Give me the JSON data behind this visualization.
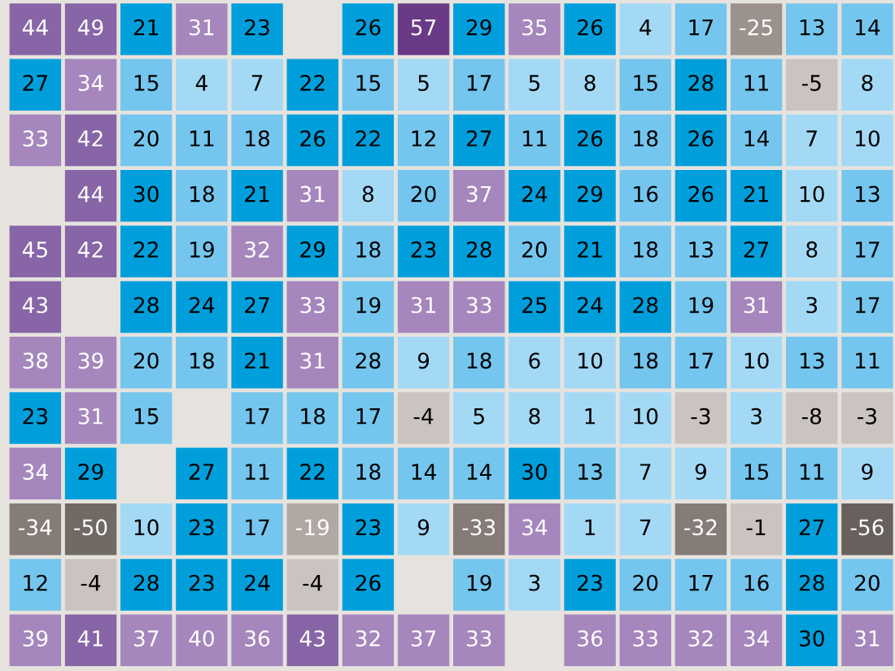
{
  "chart_data": {
    "type": "heatmap",
    "categories": [
      null,
      null,
      null,
      null,
      null,
      null,
      null,
      null,
      null,
      null,
      null,
      null,
      null,
      null,
      null,
      null
    ],
    "y_categories": [
      null,
      null,
      null,
      null,
      null,
      null,
      null,
      null,
      null,
      null,
      null,
      null
    ],
    "data_labels": true,
    "cells": [
      [
        44,
        49,
        21,
        31,
        23,
        null,
        26,
        57,
        29,
        35,
        26,
        4,
        17,
        -25,
        13,
        14
      ],
      [
        27,
        34,
        15,
        4,
        7,
        22,
        15,
        5,
        17,
        5,
        8,
        15,
        28,
        11,
        -5,
        8
      ],
      [
        33,
        42,
        20,
        11,
        18,
        26,
        22,
        12,
        27,
        11,
        26,
        18,
        26,
        14,
        7,
        10
      ],
      [
        null,
        44,
        30,
        18,
        21,
        31,
        8,
        20,
        37,
        24,
        29,
        16,
        26,
        21,
        10,
        13
      ],
      [
        45,
        42,
        22,
        19,
        32,
        29,
        18,
        23,
        28,
        20,
        21,
        18,
        13,
        27,
        8,
        17
      ],
      [
        43,
        null,
        28,
        24,
        27,
        33,
        19,
        31,
        33,
        25,
        24,
        28,
        19,
        31,
        3,
        17
      ],
      [
        38,
        39,
        20,
        18,
        21,
        31,
        28,
        9,
        18,
        6,
        10,
        18,
        17,
        10,
        13,
        11
      ],
      [
        23,
        31,
        15,
        null,
        17,
        18,
        17,
        -4,
        5,
        8,
        1,
        10,
        -3,
        3,
        -8,
        -3
      ],
      [
        34,
        29,
        null,
        27,
        11,
        22,
        18,
        14,
        14,
        30,
        13,
        7,
        9,
        15,
        11,
        9
      ],
      [
        -34,
        -50,
        10,
        23,
        17,
        -19,
        23,
        9,
        -33,
        34,
        1,
        7,
        -32,
        -1,
        27,
        -56
      ],
      [
        12,
        -4,
        28,
        23,
        24,
        -4,
        26,
        null,
        19,
        3,
        23,
        20,
        17,
        16,
        28,
        20
      ],
      [
        39,
        41,
        37,
        40,
        36,
        43,
        32,
        37,
        33,
        null,
        36,
        33,
        32,
        34,
        30,
        31
      ]
    ],
    "colors": [
      [
        "#8765a6",
        "#8765a6",
        "#009fdb",
        "#a586bd",
        "#009fdb",
        null,
        "#009fdb",
        "#6a3a87",
        "#009fdb",
        "#a586bd",
        "#009fdb",
        "#a3d9f5",
        "#74c6ee",
        "#9b918d",
        "#74c6ee",
        "#74c6ee"
      ],
      [
        "#009fdb",
        "#a586bd",
        "#74c6ee",
        "#a3d9f5",
        "#a3d9f5",
        "#009fdb",
        "#74c6ee",
        "#a3d9f5",
        "#74c6ee",
        "#a3d9f5",
        "#a3d9f5",
        "#74c6ee",
        "#009fdb",
        "#74c6ee",
        "#cbc3bf",
        "#a3d9f5"
      ],
      [
        "#a586bd",
        "#8765a6",
        "#74c6ee",
        "#74c6ee",
        "#74c6ee",
        "#009fdb",
        "#009fdb",
        "#74c6ee",
        "#009fdb",
        "#74c6ee",
        "#009fdb",
        "#74c6ee",
        "#009fdb",
        "#74c6ee",
        "#a3d9f5",
        "#a3d9f5"
      ],
      [
        null,
        "#8765a6",
        "#009fdb",
        "#74c6ee",
        "#009fdb",
        "#a586bd",
        "#a3d9f5",
        "#74c6ee",
        "#a586bd",
        "#009fdb",
        "#009fdb",
        "#74c6ee",
        "#009fdb",
        "#009fdb",
        "#a3d9f5",
        "#74c6ee"
      ],
      [
        "#8765a6",
        "#8765a6",
        "#009fdb",
        "#74c6ee",
        "#a586bd",
        "#009fdb",
        "#74c6ee",
        "#009fdb",
        "#009fdb",
        "#74c6ee",
        "#009fdb",
        "#74c6ee",
        "#74c6ee",
        "#009fdb",
        "#a3d9f5",
        "#74c6ee"
      ],
      [
        "#8765a6",
        null,
        "#009fdb",
        "#009fdb",
        "#009fdb",
        "#a586bd",
        "#74c6ee",
        "#a586bd",
        "#a586bd",
        "#009fdb",
        "#009fdb",
        "#009fdb",
        "#74c6ee",
        "#a586bd",
        "#a3d9f5",
        "#74c6ee"
      ],
      [
        "#a586bd",
        "#a586bd",
        "#74c6ee",
        "#74c6ee",
        "#009fdb",
        "#a586bd",
        "#74c6ee",
        "#a3d9f5",
        "#74c6ee",
        "#a3d9f5",
        "#a3d9f5",
        "#74c6ee",
        "#74c6ee",
        "#a3d9f5",
        "#74c6ee",
        "#74c6ee"
      ],
      [
        "#009fdb",
        "#a586bd",
        "#74c6ee",
        null,
        "#74c6ee",
        "#74c6ee",
        "#74c6ee",
        "#cbc3bf",
        "#a3d9f5",
        "#a3d9f5",
        "#a3d9f5",
        "#a3d9f5",
        "#cbc3bf",
        "#a3d9f5",
        "#cbc3bf",
        "#cbc3bf"
      ],
      [
        "#a586bd",
        "#009fdb",
        null,
        "#009fdb",
        "#74c6ee",
        "#009fdb",
        "#74c6ee",
        "#74c6ee",
        "#74c6ee",
        "#009fdb",
        "#74c6ee",
        "#a3d9f5",
        "#a3d9f5",
        "#74c6ee",
        "#74c6ee",
        "#a3d9f5"
      ],
      [
        "#857b77",
        "#716964",
        "#a3d9f5",
        "#009fdb",
        "#74c6ee",
        "#b1a8a4",
        "#009fdb",
        "#a3d9f5",
        "#857b77",
        "#a586bd",
        "#a3d9f5",
        "#a3d9f5",
        "#857b77",
        "#cbc3bf",
        "#009fdb",
        "#67605c"
      ],
      [
        "#74c6ee",
        "#cbc3bf",
        "#009fdb",
        "#009fdb",
        "#009fdb",
        "#cbc3bf",
        "#009fdb",
        null,
        "#74c6ee",
        "#a3d9f5",
        "#009fdb",
        "#74c6ee",
        "#74c6ee",
        "#74c6ee",
        "#009fdb",
        "#74c6ee"
      ],
      [
        "#a586bd",
        "#8765a6",
        "#a586bd",
        "#a586bd",
        "#a586bd",
        "#8765a6",
        "#a586bd",
        "#a586bd",
        "#a586bd",
        null,
        "#a586bd",
        "#a586bd",
        "#a586bd",
        "#a586bd",
        "#009fdb",
        "#a586bd"
      ]
    ]
  }
}
